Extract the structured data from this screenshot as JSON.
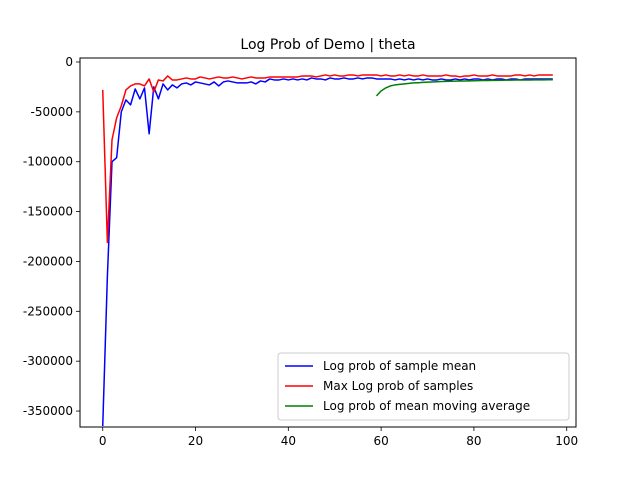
{
  "chart_data": {
    "type": "line",
    "title": "Log Prob of Demo | theta",
    "xlabel": "",
    "ylabel": "",
    "xlim": [
      -4.9,
      102
    ],
    "ylim": [
      -366000,
      4000
    ],
    "xticks": [
      0,
      20,
      40,
      60,
      80,
      100
    ],
    "yticks": [
      0,
      -50000,
      -100000,
      -150000,
      -200000,
      -250000,
      -300000,
      -350000
    ],
    "grid": false,
    "legend_position": "lower-right",
    "series": [
      {
        "name": "Log prob of sample mean",
        "color": "#0000ff",
        "x": [
          0,
          1,
          2,
          3,
          4,
          5,
          6,
          7,
          8,
          9,
          10,
          11,
          12,
          13,
          14,
          15,
          16,
          17,
          18,
          19,
          20,
          21,
          22,
          23,
          24,
          25,
          26,
          27,
          28,
          29,
          30,
          31,
          32,
          33,
          34,
          35,
          36,
          37,
          38,
          39,
          40,
          41,
          42,
          43,
          44,
          45,
          46,
          47,
          48,
          49,
          50,
          51,
          52,
          53,
          54,
          55,
          56,
          57,
          58,
          59,
          60,
          61,
          62,
          63,
          64,
          65,
          66,
          67,
          68,
          69,
          70,
          71,
          72,
          73,
          74,
          75,
          76,
          77,
          78,
          79,
          80,
          81,
          82,
          83,
          84,
          85,
          86,
          87,
          88,
          89,
          90,
          91,
          92,
          93,
          94,
          95,
          96,
          97
        ],
        "y": [
          -365000,
          -215000,
          -100000,
          -96000,
          -50000,
          -38000,
          -43000,
          -27000,
          -37000,
          -26000,
          -72000,
          -25000,
          -37000,
          -22000,
          -28000,
          -23000,
          -26000,
          -22000,
          -21000,
          -23000,
          -20000,
          -21000,
          -22000,
          -23000,
          -20000,
          -24000,
          -20000,
          -19000,
          -20000,
          -21000,
          -21000,
          -21000,
          -20000,
          -22000,
          -19000,
          -20000,
          -17000,
          -18000,
          -18000,
          -17000,
          -18000,
          -17000,
          -18000,
          -17000,
          -18000,
          -16000,
          -17000,
          -17000,
          -18000,
          -16000,
          -17000,
          -17000,
          -16000,
          -17000,
          -17000,
          -16000,
          -17000,
          -16000,
          -16000,
          -17000,
          -17000,
          -17000,
          -17000,
          -18000,
          -17000,
          -18000,
          -17000,
          -18000,
          -17000,
          -18000,
          -17000,
          -18000,
          -18000,
          -17000,
          -18000,
          -18000,
          -17000,
          -18000,
          -17000,
          -18000,
          -17000,
          -17000,
          -18000,
          -17000,
          -18000,
          -17000,
          -17000,
          -18000,
          -17000,
          -17000,
          -18000,
          -17000,
          -17000,
          -17000,
          -17000,
          -17000,
          -17000,
          -17000
        ]
      },
      {
        "name": "Max Log prob of samples",
        "color": "#ff0000",
        "x": [
          0,
          1,
          2,
          3,
          4,
          5,
          6,
          7,
          8,
          9,
          10,
          11,
          12,
          13,
          14,
          15,
          16,
          17,
          18,
          19,
          20,
          21,
          22,
          23,
          24,
          25,
          26,
          27,
          28,
          29,
          30,
          31,
          32,
          33,
          34,
          35,
          36,
          37,
          38,
          39,
          40,
          41,
          42,
          43,
          44,
          45,
          46,
          47,
          48,
          49,
          50,
          51,
          52,
          53,
          54,
          55,
          56,
          57,
          58,
          59,
          60,
          61,
          62,
          63,
          64,
          65,
          66,
          67,
          68,
          69,
          70,
          71,
          72,
          73,
          74,
          75,
          76,
          77,
          78,
          79,
          80,
          81,
          82,
          83,
          84,
          85,
          86,
          87,
          88,
          89,
          90,
          91,
          92,
          93,
          94,
          95,
          96,
          97
        ],
        "y": [
          -28000,
          -181000,
          -78000,
          -56000,
          -44000,
          -28000,
          -24000,
          -22000,
          -22000,
          -24000,
          -17000,
          -30000,
          -18000,
          -19000,
          -14000,
          -18000,
          -18000,
          -17000,
          -16000,
          -17000,
          -17000,
          -15000,
          -16000,
          -17000,
          -16000,
          -15000,
          -16000,
          -16000,
          -15000,
          -16000,
          -17000,
          -16000,
          -15000,
          -16000,
          -16000,
          -16000,
          -15000,
          -15000,
          -15000,
          -15000,
          -15000,
          -15000,
          -15000,
          -14000,
          -14000,
          -14000,
          -15000,
          -14000,
          -13000,
          -14000,
          -13000,
          -14000,
          -14000,
          -13000,
          -13000,
          -14000,
          -13000,
          -13000,
          -13000,
          -13000,
          -14000,
          -13000,
          -14000,
          -14000,
          -13000,
          -14000,
          -13000,
          -14000,
          -14000,
          -13000,
          -14000,
          -14000,
          -14000,
          -14000,
          -13000,
          -14000,
          -14000,
          -15000,
          -14000,
          -14000,
          -13000,
          -14000,
          -14000,
          -14000,
          -13000,
          -14000,
          -14000,
          -14000,
          -14000,
          -13000,
          -13000,
          -14000,
          -13000,
          -14000,
          -13000,
          -13000,
          -13000,
          -13000
        ]
      },
      {
        "name": "Log prob of mean moving average",
        "color": "#008000",
        "x": [
          59,
          60,
          61,
          62,
          63,
          64,
          65,
          66,
          67,
          68,
          69,
          70,
          71,
          72,
          73,
          74,
          75,
          76,
          77,
          78,
          79,
          80,
          81,
          82,
          83,
          84,
          85,
          86,
          87,
          88,
          89,
          90,
          91,
          92,
          93,
          94,
          95,
          96,
          97
        ],
        "y": [
          -34000,
          -29000,
          -26000,
          -24000,
          -23000,
          -22500,
          -22000,
          -21500,
          -21000,
          -20800,
          -20500,
          -20200,
          -20000,
          -19800,
          -19600,
          -19400,
          -19300,
          -19200,
          -19100,
          -19000,
          -18900,
          -18800,
          -18700,
          -18600,
          -18500,
          -18400,
          -18400,
          -18300,
          -18200,
          -18200,
          -18100,
          -18100,
          -18000,
          -18000,
          -17900,
          -17900,
          -17900,
          -17800,
          -17800
        ]
      }
    ]
  }
}
